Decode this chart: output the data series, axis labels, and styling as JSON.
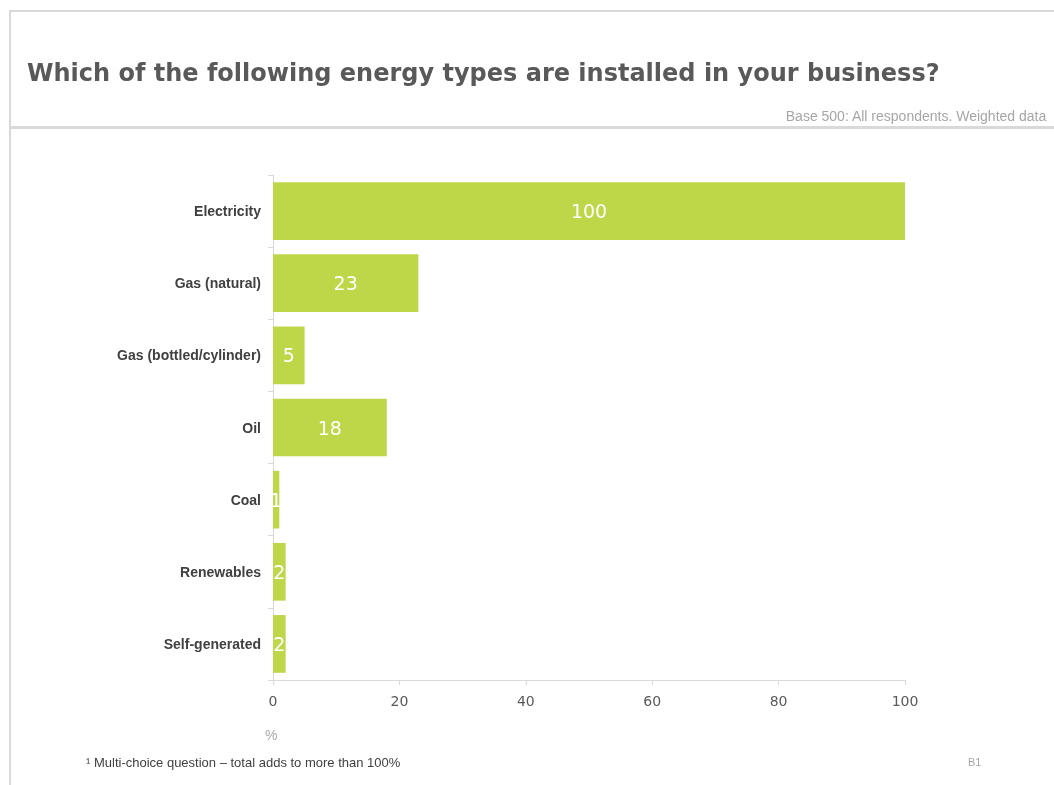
{
  "chart_data": {
    "type": "bar",
    "orientation": "horizontal",
    "title": "Which of the following energy types are installed in your business?",
    "subtitle": "Base 500: All respondents. Weighted data",
    "categories": [
      "Electricity",
      "Gas (natural)",
      "Gas (bottled/cylinder)",
      "Oil",
      "Coal",
      "Renewables",
      "Self-generated"
    ],
    "values": [
      100,
      23,
      5,
      18,
      1,
      2,
      2
    ],
    "color": "#bdd748",
    "xlabel": "%",
    "xlim": [
      0,
      100
    ],
    "xticks": [
      0,
      20,
      40,
      60,
      80,
      100
    ],
    "data_labels": true,
    "grid": false,
    "annotations": [
      "¹ Multi-choice question – total adds to more than 100%",
      "B1"
    ]
  }
}
